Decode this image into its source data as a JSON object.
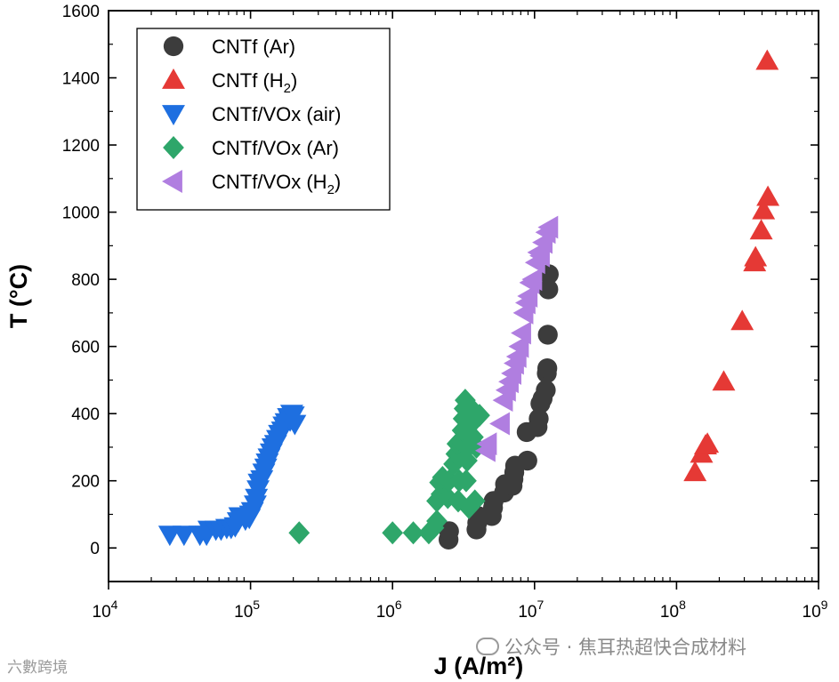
{
  "chart_data": {
    "type": "scatter",
    "title": "",
    "xlabel": "J (A/m²)",
    "ylabel": "T (°C)",
    "xscale": "log",
    "xlim": [
      10000,
      1000000000
    ],
    "ylim": [
      -100,
      1600
    ],
    "grid": false,
    "legend_position": "top-left",
    "x_ticks": [
      {
        "value": 10000,
        "base": "10",
        "exp": "4"
      },
      {
        "value": 100000,
        "base": "10",
        "exp": "5"
      },
      {
        "value": 1000000,
        "base": "10",
        "exp": "6"
      },
      {
        "value": 10000000,
        "base": "10",
        "exp": "7"
      },
      {
        "value": 100000000,
        "base": "10",
        "exp": "8"
      },
      {
        "value": 1000000000,
        "base": "10",
        "exp": "9"
      }
    ],
    "y_ticks": [
      {
        "value": 0,
        "label": "0"
      },
      {
        "value": 200,
        "label": "200"
      },
      {
        "value": 400,
        "label": "400"
      },
      {
        "value": 600,
        "label": "600"
      },
      {
        "value": 800,
        "label": "800"
      },
      {
        "value": 1000,
        "label": "1000"
      },
      {
        "value": 1200,
        "label": "1200"
      },
      {
        "value": 1400,
        "label": "1400"
      },
      {
        "value": 1600,
        "label": "1600"
      }
    ],
    "series": [
      {
        "name": "CNTf (Ar)",
        "label_main": "CNTf (Ar)",
        "label_sub": "",
        "label_tail": "",
        "marker": "circle",
        "color": "#3c3c3c",
        "points": [
          [
            2480000,
            25
          ],
          [
            2500000,
            50
          ],
          [
            3900000,
            55
          ],
          [
            3950000,
            75
          ],
          [
            4000000,
            95
          ],
          [
            5000000,
            95
          ],
          [
            5100000,
            120
          ],
          [
            5150000,
            140
          ],
          [
            6100000,
            165
          ],
          [
            6200000,
            190
          ],
          [
            7000000,
            185
          ],
          [
            7100000,
            205
          ],
          [
            7200000,
            225
          ],
          [
            7300000,
            245
          ],
          [
            8900000,
            260
          ],
          [
            8800000,
            345
          ],
          [
            10500000,
            360
          ],
          [
            10700000,
            385
          ],
          [
            11000000,
            430
          ],
          [
            11400000,
            445
          ],
          [
            12000000,
            470
          ],
          [
            12200000,
            520
          ],
          [
            12300000,
            535
          ],
          [
            12400000,
            635
          ],
          [
            12500000,
            770
          ],
          [
            12600000,
            815
          ]
        ]
      },
      {
        "name": "CNTf (H2)",
        "label_main": "CNTf (H",
        "label_sub": "2",
        "label_tail": ")",
        "marker": "triangle-up",
        "color": "#e53935",
        "points": [
          [
            135000000,
            225
          ],
          [
            150000000,
            280
          ],
          [
            160000000,
            305
          ],
          [
            165000000,
            310
          ],
          [
            215000000,
            495
          ],
          [
            290000000,
            675
          ],
          [
            355000000,
            850
          ],
          [
            360000000,
            865
          ],
          [
            395000000,
            945
          ],
          [
            410000000,
            1005
          ],
          [
            440000000,
            1045
          ],
          [
            435000000,
            1450
          ]
        ]
      },
      {
        "name": "CNTf/VOx (air)",
        "label_main": "CNTf/VOx (air)",
        "label_sub": "",
        "label_tail": "",
        "marker": "triangle-down",
        "color": "#1e6fe0",
        "points": [
          [
            27000,
            40
          ],
          [
            34000,
            40
          ],
          [
            44000,
            40
          ],
          [
            49000,
            40
          ],
          [
            51000,
            55
          ],
          [
            57000,
            55
          ],
          [
            62000,
            55
          ],
          [
            68000,
            60
          ],
          [
            73000,
            60
          ],
          [
            78000,
            65
          ],
          [
            82000,
            80
          ],
          [
            84000,
            95
          ],
          [
            92000,
            85
          ],
          [
            98000,
            90
          ],
          [
            100000,
            100
          ],
          [
            103000,
            110
          ],
          [
            108000,
            130
          ],
          [
            110000,
            150
          ],
          [
            113000,
            175
          ],
          [
            115000,
            195
          ],
          [
            120000,
            205
          ],
          [
            124000,
            225
          ],
          [
            128000,
            240
          ],
          [
            131000,
            255
          ],
          [
            135000,
            270
          ],
          [
            140000,
            285
          ],
          [
            144000,
            300
          ],
          [
            150000,
            310
          ],
          [
            155000,
            325
          ],
          [
            160000,
            340
          ],
          [
            168000,
            350
          ],
          [
            172000,
            365
          ],
          [
            178000,
            375
          ],
          [
            185000,
            390
          ],
          [
            190000,
            380
          ],
          [
            195000,
            400
          ],
          [
            200000,
            395
          ],
          [
            205000,
            370
          ]
        ]
      },
      {
        "name": "CNTf/VOx (Ar)",
        "label_main": "CNTf/VOx (Ar)",
        "label_sub": "",
        "label_tail": "",
        "marker": "diamond",
        "color": "#2ea66a",
        "points": [
          [
            220000,
            45
          ],
          [
            1000000,
            45
          ],
          [
            1400000,
            45
          ],
          [
            1800000,
            45
          ],
          [
            1950000,
            60
          ],
          [
            2050000,
            80
          ],
          [
            2050000,
            140
          ],
          [
            2200000,
            160
          ],
          [
            2150000,
            195
          ],
          [
            2250000,
            210
          ],
          [
            2450000,
            150
          ],
          [
            2500000,
            200
          ],
          [
            2700000,
            250
          ],
          [
            2800000,
            280
          ],
          [
            2850000,
            310
          ],
          [
            2900000,
            140
          ],
          [
            2950000,
            200
          ],
          [
            3000000,
            320
          ],
          [
            3100000,
            350
          ],
          [
            3150000,
            385
          ],
          [
            3200000,
            415
          ],
          [
            3250000,
            440
          ],
          [
            3300000,
            200
          ],
          [
            3350000,
            260
          ],
          [
            3400000,
            300
          ],
          [
            3450000,
            120
          ],
          [
            3500000,
            420
          ],
          [
            3600000,
            370
          ],
          [
            3700000,
            330
          ],
          [
            3800000,
            140
          ],
          [
            3900000,
            300
          ],
          [
            4100000,
            395
          ]
        ]
      },
      {
        "name": "CNTf/VOx (H2)",
        "label_main": "CNTf/VOx (H",
        "label_sub": "2",
        "label_tail": ")",
        "marker": "triangle-left",
        "color": "#b07ee0",
        "points": [
          [
            4600000,
            290
          ],
          [
            4700000,
            310
          ],
          [
            5800000,
            370
          ],
          [
            6100000,
            440
          ],
          [
            6400000,
            470
          ],
          [
            6700000,
            495
          ],
          [
            7000000,
            520
          ],
          [
            7300000,
            550
          ],
          [
            7600000,
            570
          ],
          [
            7900000,
            600
          ],
          [
            8200000,
            640
          ],
          [
            8500000,
            700
          ],
          [
            8800000,
            730
          ],
          [
            9100000,
            750
          ],
          [
            9400000,
            790
          ],
          [
            9800000,
            800
          ],
          [
            10300000,
            850
          ],
          [
            10700000,
            880
          ],
          [
            11100000,
            870
          ],
          [
            11600000,
            910
          ],
          [
            12200000,
            940
          ],
          [
            12700000,
            955
          ]
        ]
      }
    ]
  },
  "watermark": {
    "right_text": "公众号 · 焦耳热超快合成材料",
    "left_text": "六數跨境"
  }
}
